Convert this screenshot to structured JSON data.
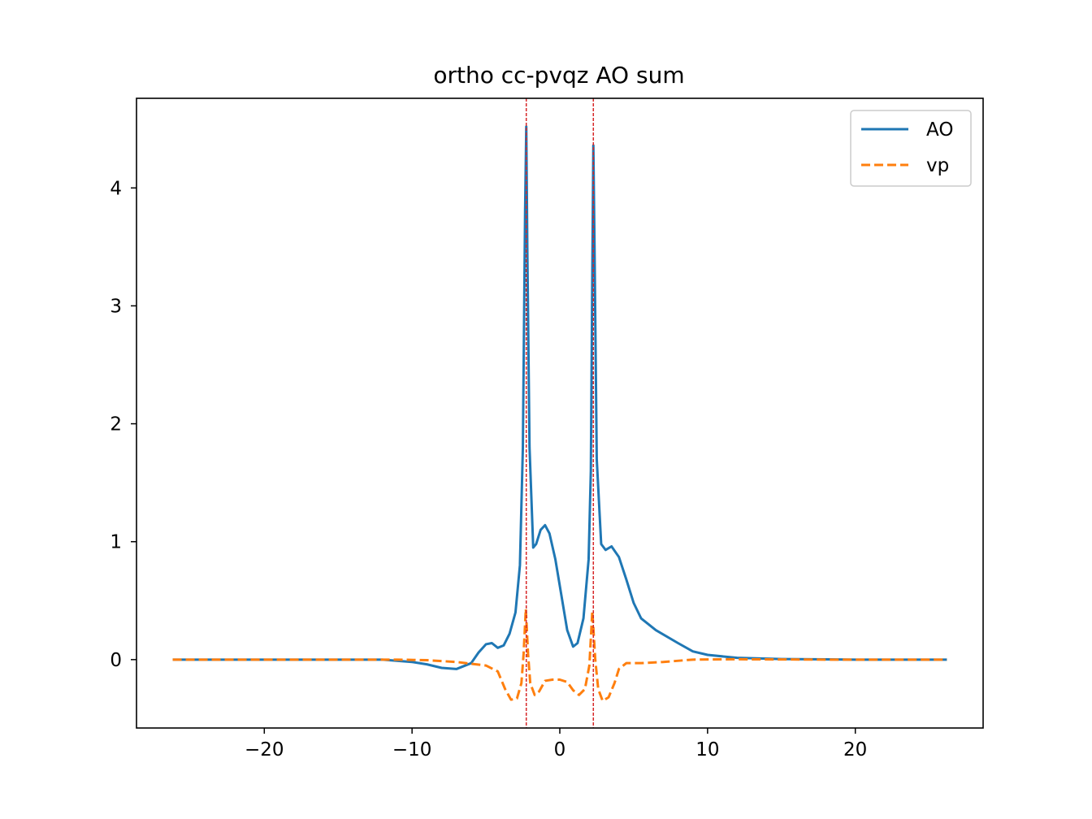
{
  "chart_data": {
    "type": "line",
    "title": "ortho cc-pvqz AO sum",
    "xlabel": "",
    "ylabel": "",
    "xlim": [
      -28.65,
      28.65
    ],
    "ylim": [
      -0.58,
      4.76
    ],
    "xticks": [
      -20,
      -10,
      0,
      10,
      20
    ],
    "xtick_labels": [
      "−20",
      "−10",
      "0",
      "10",
      "20"
    ],
    "yticks": [
      0,
      1,
      2,
      3,
      4
    ],
    "ytick_labels": [
      "0",
      "1",
      "2",
      "3",
      "4"
    ],
    "grid": false,
    "legend_position": "top-right",
    "vlines": [
      {
        "x": -2.27,
        "color": "#d62728",
        "style": "dashed"
      },
      {
        "x": 2.27,
        "color": "#d62728",
        "style": "dashed"
      }
    ],
    "series": [
      {
        "name": "AO",
        "color": "#1f77b4",
        "style": "solid",
        "points": [
          [
            -26.2,
            0.0
          ],
          [
            -15,
            0.0
          ],
          [
            -12,
            0.0
          ],
          [
            -10,
            -0.02
          ],
          [
            -9,
            -0.04
          ],
          [
            -8,
            -0.07
          ],
          [
            -7,
            -0.08
          ],
          [
            -6,
            -0.03
          ],
          [
            -5.5,
            0.06
          ],
          [
            -5,
            0.13
          ],
          [
            -4.6,
            0.14
          ],
          [
            -4.2,
            0.1
          ],
          [
            -3.8,
            0.12
          ],
          [
            -3.4,
            0.22
          ],
          [
            -3.0,
            0.4
          ],
          [
            -2.7,
            0.8
          ],
          [
            -2.5,
            1.8
          ],
          [
            -2.35,
            3.8
          ],
          [
            -2.27,
            4.52
          ],
          [
            -2.2,
            3.5
          ],
          [
            -2.05,
            1.8
          ],
          [
            -1.8,
            0.95
          ],
          [
            -1.6,
            0.98
          ],
          [
            -1.3,
            1.1
          ],
          [
            -1.0,
            1.14
          ],
          [
            -0.7,
            1.07
          ],
          [
            -0.3,
            0.85
          ],
          [
            0.1,
            0.55
          ],
          [
            0.5,
            0.25
          ],
          [
            0.9,
            0.11
          ],
          [
            1.2,
            0.14
          ],
          [
            1.6,
            0.35
          ],
          [
            1.95,
            0.85
          ],
          [
            2.1,
            1.6
          ],
          [
            2.2,
            3.3
          ],
          [
            2.27,
            4.36
          ],
          [
            2.35,
            3.5
          ],
          [
            2.5,
            1.7
          ],
          [
            2.8,
            0.98
          ],
          [
            3.1,
            0.93
          ],
          [
            3.5,
            0.96
          ],
          [
            4.0,
            0.87
          ],
          [
            4.5,
            0.68
          ],
          [
            5.0,
            0.48
          ],
          [
            5.5,
            0.35
          ],
          [
            6.5,
            0.25
          ],
          [
            8,
            0.14
          ],
          [
            9,
            0.07
          ],
          [
            10,
            0.04
          ],
          [
            12,
            0.015
          ],
          [
            15,
            0.005
          ],
          [
            20,
            0.0
          ],
          [
            26.2,
            0.0
          ]
        ]
      },
      {
        "name": "vp",
        "color": "#ff7f0e",
        "style": "dashed",
        "points": [
          [
            -26.2,
            0.0
          ],
          [
            -15,
            0.0
          ],
          [
            -11,
            0.0
          ],
          [
            -9,
            -0.005
          ],
          [
            -7,
            -0.02
          ],
          [
            -5,
            -0.05
          ],
          [
            -4.2,
            -0.1
          ],
          [
            -3.7,
            -0.25
          ],
          [
            -3.3,
            -0.34
          ],
          [
            -2.9,
            -0.33
          ],
          [
            -2.6,
            -0.2
          ],
          [
            -2.45,
            0.05
          ],
          [
            -2.3,
            0.43
          ],
          [
            -2.15,
            0.05
          ],
          [
            -2.0,
            -0.2
          ],
          [
            -1.7,
            -0.3
          ],
          [
            -1.4,
            -0.27
          ],
          [
            -1.0,
            -0.18
          ],
          [
            -0.5,
            -0.17
          ],
          [
            0.0,
            -0.17
          ],
          [
            0.5,
            -0.19
          ],
          [
            0.9,
            -0.26
          ],
          [
            1.3,
            -0.3
          ],
          [
            1.7,
            -0.25
          ],
          [
            2.0,
            -0.05
          ],
          [
            2.2,
            0.41
          ],
          [
            2.4,
            0.0
          ],
          [
            2.6,
            -0.25
          ],
          [
            2.9,
            -0.35
          ],
          [
            3.3,
            -0.32
          ],
          [
            3.7,
            -0.2
          ],
          [
            4.0,
            -0.08
          ],
          [
            4.5,
            -0.03
          ],
          [
            5.5,
            -0.03
          ],
          [
            7,
            -0.02
          ],
          [
            9,
            0.0
          ],
          [
            12,
            0.003
          ],
          [
            18,
            0.0
          ],
          [
            26.2,
            0.0
          ]
        ]
      }
    ]
  }
}
